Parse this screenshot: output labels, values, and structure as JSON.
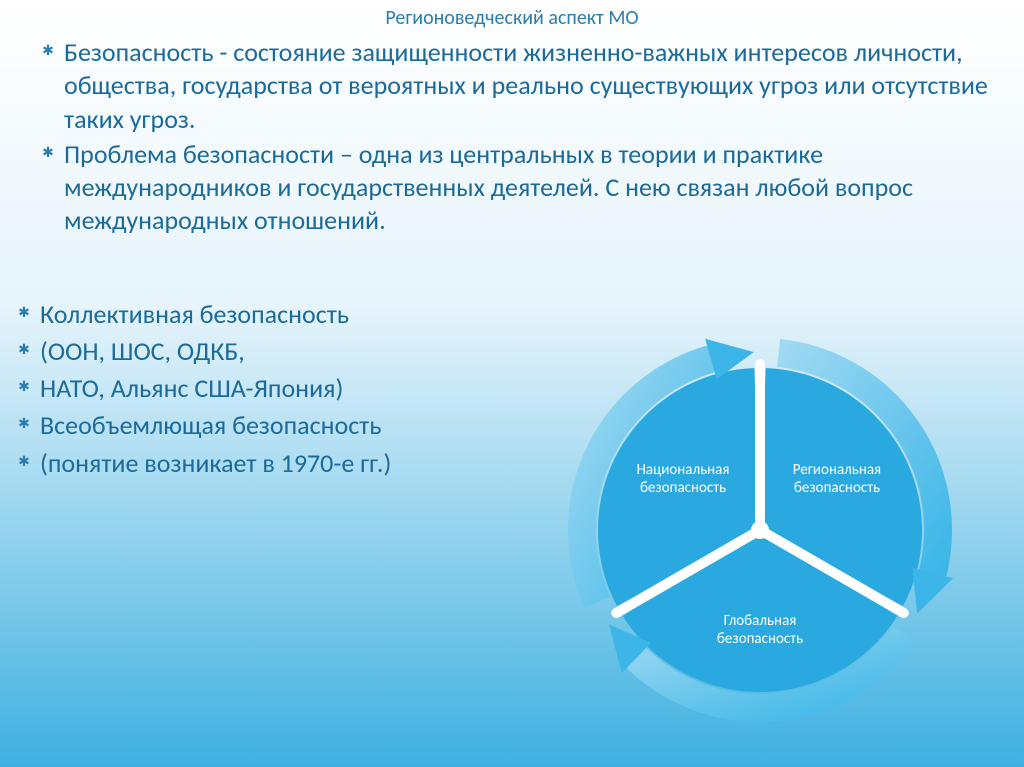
{
  "title": "Регионоведческий аспект МО",
  "title_color": "#2b7dab",
  "bullet_color": "#2b7dab",
  "text_color": "#1b6a9a",
  "paragraphs": [
    "Безопасность - состояние защищенности жизненно-важных интересов личности, общества, государства от вероятных и реально существующих угроз или отсутствие таких угроз.",
    "Проблема безопасности – одна из центральных в теории и практике международников и государственных деятелей. С нею связан любой вопрос международных отношений."
  ],
  "list_items": [
    "Коллективная безопасность",
    "(ООН, ШОС, ОДКБ,",
    "НАТО, Альянс США-Япония)",
    "Всеобъемлющая безопасность",
    "(понятие возникает в 1970-е гг.)"
  ],
  "chart": {
    "type": "cycle-pie",
    "segments": 3,
    "labels": {
      "seg1_l1": "Национальная",
      "seg1_l2": "безопасность",
      "seg2_l1": "Региональная",
      "seg2_l2": "безопасность",
      "seg3_l1": "Глобальная",
      "seg3_l2": "безопасность"
    },
    "colors": {
      "slice": "#2aa9e0",
      "ring_light": "#9fd9f2",
      "ring_dark": "#3cb6e8",
      "gap": "#ffffff",
      "label_text": "#ffffff"
    },
    "font_size_label": 15,
    "outer_radius": 190,
    "ring_width": 28,
    "inner_radius": 162,
    "gap_width": 10
  },
  "star_glyph": "✱"
}
